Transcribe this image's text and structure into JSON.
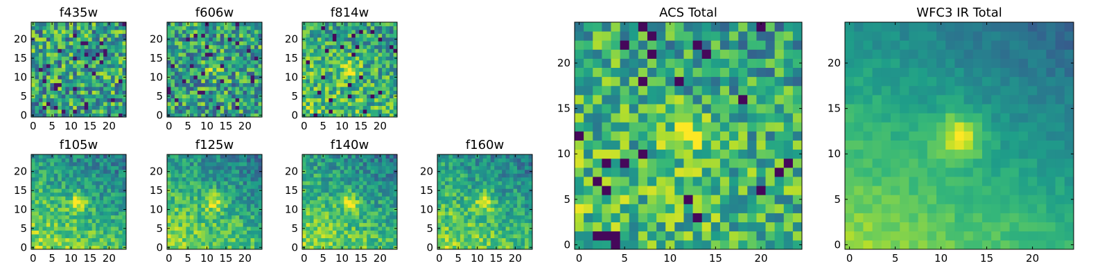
{
  "figure": {
    "description_colormap": "viridis",
    "colors": {
      "cmap_low": "#440154",
      "cmap_mid": "#21918c",
      "cmap_high": "#fde725",
      "axis": "#000000",
      "background": "#ffffff"
    }
  },
  "chart_data": [
    {
      "id": "f435w",
      "type": "heatmap",
      "title": "f435w",
      "grid_size": 25,
      "xlim": [
        0,
        25
      ],
      "ylim": [
        0,
        25
      ],
      "xticks": [
        "0",
        "5",
        "10",
        "15",
        "20"
      ],
      "yticks": [
        "0",
        "5",
        "10",
        "15",
        "20"
      ],
      "pattern": "noise",
      "seed": 11
    },
    {
      "id": "f606w",
      "type": "heatmap",
      "title": "f606w",
      "grid_size": 25,
      "xlim": [
        0,
        25
      ],
      "ylim": [
        0,
        25
      ],
      "xticks": [
        "0",
        "5",
        "10",
        "15",
        "20"
      ],
      "yticks": [
        "0",
        "5",
        "10",
        "15",
        "20"
      ],
      "pattern": "noise_center",
      "seed": 23
    },
    {
      "id": "f814w",
      "type": "heatmap",
      "title": "f814w",
      "grid_size": 25,
      "xlim": [
        0,
        25
      ],
      "ylim": [
        0,
        25
      ],
      "xticks": [
        "0",
        "5",
        "10",
        "15",
        "20"
      ],
      "yticks": [
        "0",
        "5",
        "10",
        "15",
        "20"
      ],
      "pattern": "noise_center_strong",
      "seed": 37
    },
    {
      "id": "f105w",
      "type": "heatmap",
      "title": "f105w",
      "grid_size": 25,
      "xlim": [
        0,
        25
      ],
      "ylim": [
        0,
        25
      ],
      "xticks": [
        "0",
        "5",
        "10",
        "15",
        "20"
      ],
      "yticks": [
        "0",
        "5",
        "10",
        "15",
        "20"
      ],
      "pattern": "smooth",
      "seed": 41
    },
    {
      "id": "f125w",
      "type": "heatmap",
      "title": "f125w",
      "grid_size": 25,
      "xlim": [
        0,
        25
      ],
      "ylim": [
        0,
        25
      ],
      "xticks": [
        "0",
        "5",
        "10",
        "15",
        "20"
      ],
      "yticks": [
        "0",
        "5",
        "10",
        "15",
        "20"
      ],
      "pattern": "smooth",
      "seed": 53
    },
    {
      "id": "f140w",
      "type": "heatmap",
      "title": "f140w",
      "grid_size": 25,
      "xlim": [
        0,
        25
      ],
      "ylim": [
        0,
        25
      ],
      "xticks": [
        "0",
        "5",
        "10",
        "15",
        "20"
      ],
      "yticks": [
        "0",
        "5",
        "10",
        "15",
        "20"
      ],
      "pattern": "smooth",
      "seed": 67
    },
    {
      "id": "f160w",
      "type": "heatmap",
      "title": "f160w",
      "grid_size": 25,
      "xlim": [
        0,
        25
      ],
      "ylim": [
        0,
        25
      ],
      "xticks": [
        "0",
        "5",
        "10",
        "15",
        "20"
      ],
      "yticks": [
        "0",
        "5",
        "10",
        "15",
        "20"
      ],
      "pattern": "smooth",
      "seed": 79
    },
    {
      "id": "acs_total",
      "type": "heatmap",
      "title": "ACS Total",
      "grid_size": 25,
      "xlim": [
        0,
        25
      ],
      "ylim": [
        0,
        25
      ],
      "xticks": [
        "0",
        "5",
        "10",
        "15",
        "20"
      ],
      "yticks": [
        "0",
        "5",
        "10",
        "15",
        "20"
      ],
      "pattern": "noise_center_strong",
      "seed": 97
    },
    {
      "id": "wfc3_ir_total",
      "type": "heatmap",
      "title": "WFC3 IR Total",
      "grid_size": 25,
      "xlim": [
        0,
        25
      ],
      "ylim": [
        0,
        25
      ],
      "xticks": [
        "0",
        "5",
        "10",
        "15",
        "20"
      ],
      "yticks": [
        "0",
        "5",
        "10",
        "15",
        "20"
      ],
      "pattern": "smooth_strong",
      "seed": 101
    }
  ]
}
